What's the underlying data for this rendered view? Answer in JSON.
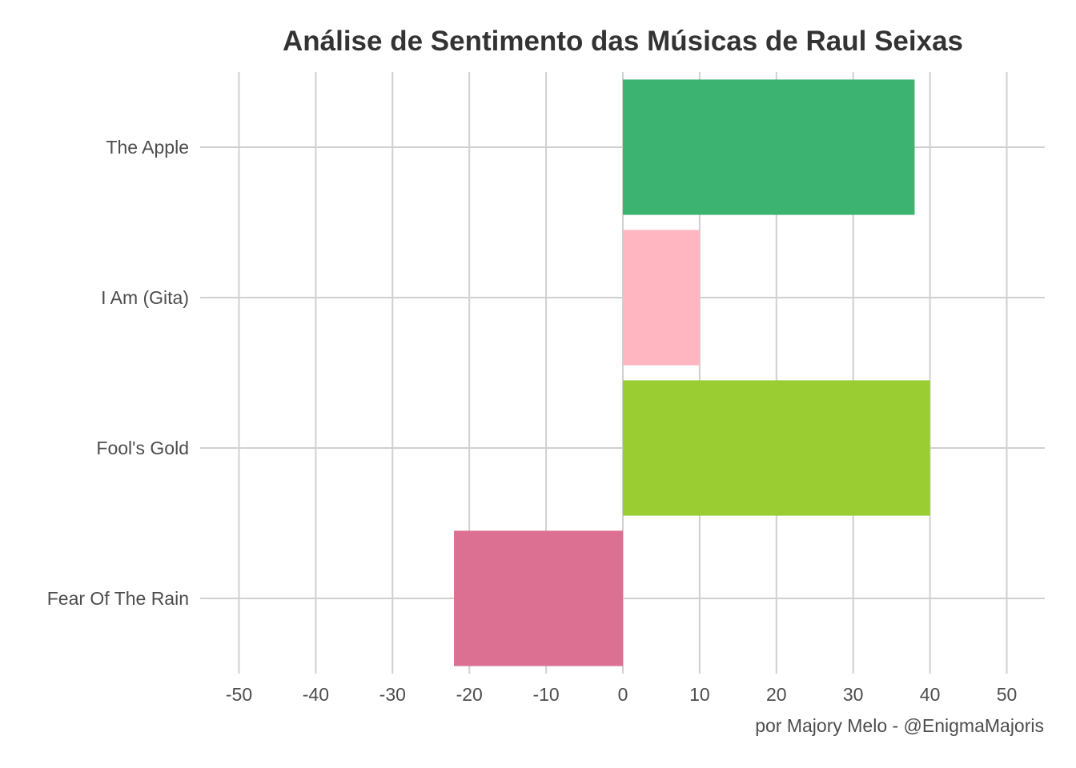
{
  "chart_data": {
    "type": "bar",
    "orientation": "horizontal",
    "title": "Análise de Sentimento das Músicas de Raul Seixas",
    "caption": "por Majory Melo - @EnigmaMajoris",
    "xlabel": "",
    "ylabel": "",
    "xlim": [
      -55,
      55
    ],
    "x_ticks": [
      "-50",
      "-40",
      "-30",
      "-20",
      "-10",
      "0",
      "10",
      "20",
      "30",
      "40",
      "50"
    ],
    "categories": [
      "The Apple",
      "I Am (Gita)",
      "Fool's Gold",
      "Fear Of The Rain"
    ],
    "values": [
      38,
      10,
      40,
      -22
    ],
    "colors": [
      "#3CB371",
      "#FFB6C1",
      "#9ACD32",
      "#DB7093"
    ],
    "grid": true,
    "legend": "none"
  }
}
